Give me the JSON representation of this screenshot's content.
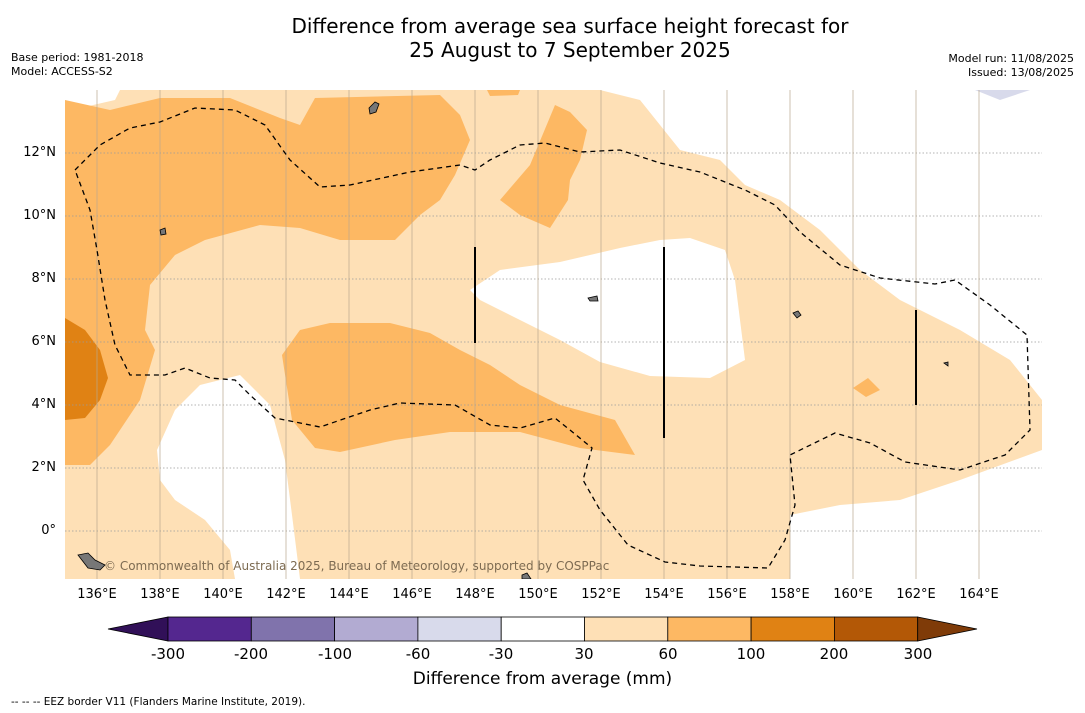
{
  "title_line1": "Difference from average sea surface height forecast for",
  "title_line2": "25 August to 7 September 2025",
  "meta_left": [
    "Base period: 1981-2018",
    "Model: ACCESS-S2"
  ],
  "meta_right": [
    "Model run: 11/08/2025",
    "Issued: 13/08/2025"
  ],
  "credit": "© Commonwealth of Australia 2025, Bureau of Meteorology, supported by COSPPac",
  "lat_labels": [
    "12°N",
    "10°N",
    "8°N",
    "6°N",
    "4°N",
    "2°N",
    "0°"
  ],
  "lon_labels": [
    "136°E",
    "138°E",
    "140°E",
    "142°E",
    "144°E",
    "146°E",
    "148°E",
    "150°E",
    "152°E",
    "154°E",
    "156°E",
    "158°E",
    "160°E",
    "162°E",
    "164°E"
  ],
  "colorbar": {
    "title": "Difference from average (mm)",
    "ticks": [
      "-300",
      "-200",
      "-100",
      "-60",
      "-30",
      "30",
      "60",
      "100",
      "200",
      "300"
    ],
    "colors": [
      "#311058",
      "#54278f",
      "#8073ac",
      "#b2abd2",
      "#d8daeb",
      "#ffffff",
      "#fee0b6",
      "#fdb863",
      "#e08214",
      "#b35806",
      "#7f3b08"
    ]
  },
  "footnote": "-- -- -- EEZ border V11 (Flanders Marine Institute, 2019)."
}
